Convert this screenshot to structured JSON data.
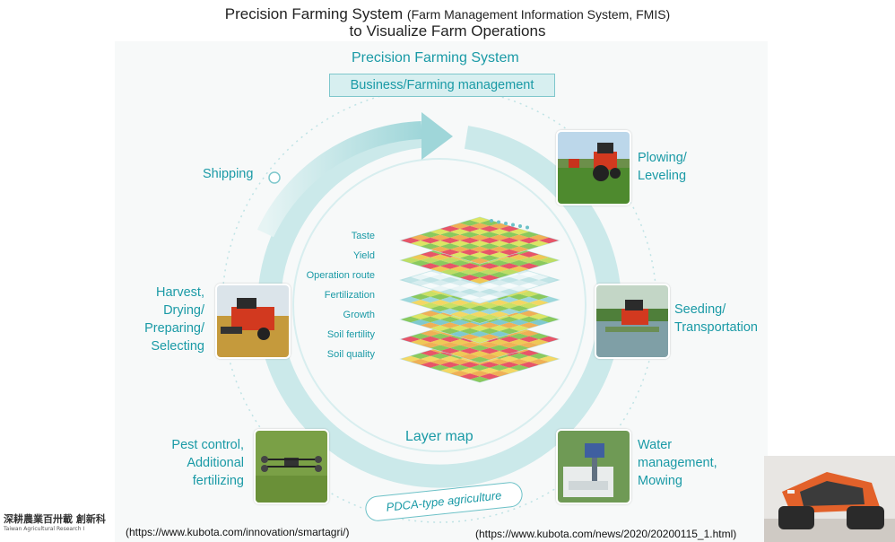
{
  "header": {
    "title_main": "Precision Farming System",
    "title_paren": "(Farm Management Information System, FMIS)",
    "title_line2": "to Visualize Farm Operations"
  },
  "diagram": {
    "system_title": "Precision Farming System",
    "business_box": "Business/Farming management",
    "center_label": "Layer map",
    "cycle_badge": "PDCA-type agriculture",
    "stages": {
      "shipping": "Shipping",
      "plowing": [
        "Plowing/",
        "Leveling"
      ],
      "seeding": [
        "Seeding/",
        "Transportation"
      ],
      "water": [
        "Water",
        "management,",
        "Mowing"
      ],
      "pest": [
        "Pest control,",
        "Additional",
        "fertilizing"
      ],
      "harvest": [
        "Harvest,",
        "Drying/",
        "Preparing/",
        "Selecting"
      ]
    },
    "layers": [
      "Taste",
      "Yield",
      "Operation route",
      "Fertilization",
      "Growth",
      "Soil fertility",
      "Soil quality"
    ],
    "accent_color": "#1a9aa6",
    "ring_color": "#cfeaea"
  },
  "sources": {
    "url_left": "(https://www.kubota.com/innovation/smartagri/)",
    "url_right": "(https://www.kubota.com/news/2020/20200115_1.html)"
  },
  "logo": {
    "text_zh": "深耕農業百卅載 創新科",
    "text_en": "Taiwan Agricultural Research I"
  }
}
